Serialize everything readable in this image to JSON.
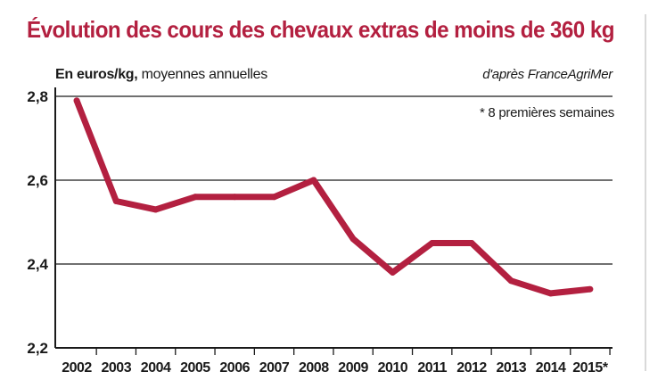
{
  "chart_data": {
    "type": "line",
    "title": "Évolution des cours des chevaux extras de moins de 360 kg",
    "unit_bold": "En euros/kg,",
    "unit_rest": " moyennes annuelles",
    "source": "d'après FranceAgriMer",
    "note": "* 8 premières semaines",
    "categories": [
      "2002",
      "2003",
      "2004",
      "2005",
      "2006",
      "2007",
      "2008",
      "2009",
      "2010",
      "2011",
      "2012",
      "2013",
      "2014",
      "2015*"
    ],
    "values": [
      2.79,
      2.55,
      2.53,
      2.56,
      2.56,
      2.56,
      2.6,
      2.46,
      2.38,
      2.45,
      2.45,
      2.36,
      2.33,
      2.34
    ],
    "ylim": [
      2.2,
      2.8
    ],
    "yticks": [
      2.2,
      2.4,
      2.6,
      2.8
    ],
    "ytick_labels": [
      "2,2",
      "2,4",
      "2,6",
      "2,8"
    ],
    "gridlines": true,
    "line_color": "#b32040"
  }
}
